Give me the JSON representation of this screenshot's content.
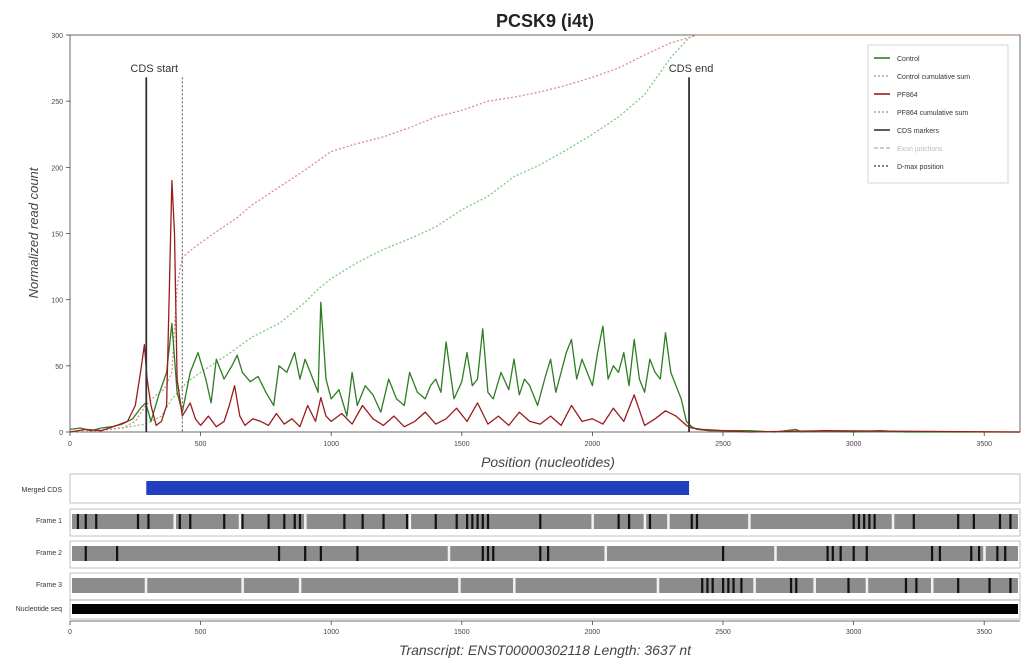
{
  "chart_data": {
    "type": "line",
    "title": "PCSK9 (i4t)",
    "xlabel": "Position (nucleotides)",
    "ylabel": "Normalized read count",
    "xlim": [
      0,
      3637
    ],
    "ylim": [
      0,
      300
    ],
    "x_ticks": [
      0,
      500,
      1000,
      1500,
      2000,
      2500,
      3000,
      3500
    ],
    "y_ticks": [
      0,
      50,
      100,
      150,
      200,
      250,
      300
    ],
    "grid": false,
    "legend_position": "top-right",
    "colors": {
      "control": "#2e7d22",
      "pf864": "#9b1c1c",
      "control_cum": "#7fc97f",
      "pf864_cum": "#e08a8a",
      "cds_markers": "#333333",
      "exon_junctions": "#bbbbbb",
      "dmax": "#555555",
      "merged_cds": "#1f3fbf",
      "frame_bg": "#8c8c8c",
      "stop": "#111111",
      "start": "#f2f2f2"
    },
    "legend": [
      {
        "label": "Control",
        "style": "solid",
        "color": "#2e7d22"
      },
      {
        "label": "Control cumulative sum",
        "style": "dotted",
        "color": "#7fc97f"
      },
      {
        "label": "PF864",
        "style": "solid",
        "color": "#9b1c1c"
      },
      {
        "label": "PF864 cumulative sum",
        "style": "dotted",
        "color": "#e08a8a"
      },
      {
        "label": "CDS markers",
        "style": "solid",
        "color": "#333333"
      },
      {
        "label": "Exon junctions",
        "style": "dashed",
        "color": "#bbbbbb"
      },
      {
        "label": "D-max position",
        "style": "dotted",
        "color": "#555555"
      }
    ],
    "annotations": {
      "cds_start_label": "CDS start",
      "cds_end_label": "CDS end",
      "cds_start": 292,
      "cds_end": 2370,
      "dmax_position": 430
    },
    "series": [
      {
        "name": "Control",
        "x": [
          0,
          40,
          80,
          120,
          160,
          200,
          240,
          270,
          290,
          310,
          340,
          370,
          390,
          410,
          430,
          460,
          490,
          520,
          540,
          560,
          590,
          620,
          640,
          660,
          690,
          720,
          750,
          780,
          800,
          830,
          860,
          880,
          900,
          920,
          950,
          960,
          980,
          1000,
          1030,
          1060,
          1080,
          1100,
          1130,
          1160,
          1190,
          1220,
          1250,
          1280,
          1300,
          1330,
          1360,
          1380,
          1400,
          1420,
          1440,
          1470,
          1500,
          1520,
          1540,
          1560,
          1580,
          1600,
          1620,
          1650,
          1680,
          1700,
          1720,
          1740,
          1760,
          1790,
          1820,
          1840,
          1860,
          1880,
          1900,
          1920,
          1940,
          1960,
          1980,
          2000,
          2020,
          2040,
          2060,
          2080,
          2100,
          2120,
          2140,
          2160,
          2180,
          2200,
          2220,
          2240,
          2260,
          2280,
          2300,
          2320,
          2340,
          2360,
          2380,
          2400,
          2450,
          2500,
          2600,
          2700,
          2780,
          2800,
          2900,
          3000,
          3100,
          3200,
          3300,
          3400,
          3500,
          3637
        ],
        "y": [
          2,
          3,
          1,
          3,
          4,
          6,
          10,
          18,
          22,
          8,
          28,
          45,
          82,
          30,
          15,
          45,
          60,
          40,
          22,
          55,
          40,
          50,
          58,
          45,
          38,
          42,
          30,
          20,
          50,
          45,
          60,
          40,
          55,
          45,
          30,
          98,
          40,
          25,
          32,
          12,
          45,
          20,
          35,
          28,
          15,
          40,
          25,
          20,
          45,
          30,
          25,
          35,
          40,
          30,
          68,
          25,
          38,
          60,
          35,
          40,
          78,
          30,
          25,
          45,
          32,
          55,
          28,
          40,
          35,
          20,
          42,
          55,
          30,
          45,
          60,
          70,
          40,
          55,
          45,
          35,
          60,
          80,
          40,
          50,
          45,
          60,
          35,
          70,
          40,
          30,
          55,
          45,
          40,
          75,
          45,
          35,
          25,
          8,
          4,
          2,
          1,
          1,
          1,
          0,
          2,
          0,
          1,
          0,
          1,
          0,
          0,
          0,
          0,
          0
        ]
      },
      {
        "name": "PF864",
        "x": [
          0,
          60,
          120,
          180,
          220,
          250,
          270,
          285,
          295,
          310,
          330,
          350,
          370,
          390,
          400,
          410,
          430,
          460,
          480,
          500,
          530,
          560,
          590,
          610,
          630,
          650,
          670,
          700,
          730,
          760,
          790,
          820,
          850,
          880,
          910,
          940,
          960,
          980,
          1000,
          1040,
          1080,
          1120,
          1160,
          1200,
          1240,
          1280,
          1320,
          1360,
          1400,
          1440,
          1480,
          1520,
          1560,
          1600,
          1640,
          1680,
          1720,
          1760,
          1800,
          1840,
          1880,
          1920,
          1960,
          2000,
          2040,
          2080,
          2120,
          2160,
          2200,
          2240,
          2280,
          2320,
          2360,
          2380,
          2420,
          2500,
          2600,
          2900,
          3637
        ],
        "y": [
          0,
          2,
          1,
          5,
          8,
          20,
          45,
          66,
          40,
          20,
          5,
          8,
          20,
          190,
          150,
          40,
          12,
          22,
          10,
          5,
          12,
          4,
          8,
          20,
          35,
          12,
          5,
          10,
          8,
          5,
          14,
          6,
          10,
          4,
          20,
          8,
          26,
          12,
          8,
          14,
          6,
          20,
          10,
          5,
          12,
          4,
          8,
          15,
          6,
          10,
          18,
          8,
          22,
          6,
          12,
          5,
          15,
          8,
          6,
          12,
          5,
          20,
          8,
          10,
          6,
          18,
          8,
          28,
          5,
          10,
          16,
          12,
          5,
          3,
          2,
          1,
          0,
          1,
          0
        ]
      },
      {
        "name": "Control cumulative sum",
        "x": [
          0,
          100,
          200,
          290,
          350,
          390,
          450,
          500,
          600,
          700,
          800,
          900,
          950,
          1000,
          1100,
          1200,
          1300,
          1400,
          1500,
          1600,
          1700,
          1800,
          1900,
          2000,
          2100,
          2200,
          2300,
          2370,
          2400,
          2500,
          2600,
          2700,
          3000,
          3637
        ],
        "y": [
          0,
          1,
          3,
          6,
          12,
          25,
          38,
          45,
          58,
          72,
          82,
          98,
          108,
          116,
          128,
          138,
          146,
          155,
          168,
          178,
          193,
          202,
          213,
          225,
          238,
          255,
          283,
          298,
          300,
          300,
          300,
          300,
          300,
          300
        ]
      },
      {
        "name": "PF864 cumulative sum",
        "x": [
          0,
          100,
          200,
          250,
          290,
          330,
          360,
          390,
          410,
          430,
          480,
          550,
          640,
          700,
          800,
          900,
          1000,
          1100,
          1200,
          1300,
          1400,
          1500,
          1600,
          1700,
          1800,
          1900,
          2000,
          2100,
          2200,
          2300,
          2370,
          2400,
          2500,
          2600,
          2700,
          3000,
          3637
        ],
        "y": [
          0,
          1,
          3,
          8,
          20,
          28,
          32,
          45,
          110,
          132,
          140,
          150,
          162,
          172,
          185,
          198,
          212,
          218,
          223,
          230,
          238,
          243,
          250,
          253,
          257,
          262,
          268,
          275,
          285,
          294,
          298,
          300,
          300,
          300,
          300,
          300,
          300
        ]
      }
    ],
    "lower_tracks": {
      "merged_cds_label": "Merged CDS",
      "frame_labels": [
        "Frame 1",
        "Frame 2",
        "Frame 3"
      ],
      "nucleotide_label": "Nucleotide seq",
      "frame1_stops": [
        30,
        60,
        100,
        260,
        300,
        420,
        460,
        590,
        660,
        760,
        820,
        860,
        880,
        1050,
        1120,
        1200,
        1290,
        1400,
        1480,
        1520,
        1540,
        1560,
        1580,
        1600,
        1800,
        2100,
        2140,
        2220,
        2380,
        2400,
        3000,
        3020,
        3040,
        3060,
        3080,
        3230,
        3400,
        3460,
        3560,
        3600
      ],
      "frame1_starts": [
        400,
        650,
        900,
        1300,
        2000,
        2200,
        2290,
        2600,
        3150
      ],
      "frame2_stops": [
        60,
        180,
        800,
        900,
        960,
        1100,
        1580,
        1600,
        1620,
        1800,
        1830,
        2500,
        2900,
        2920,
        2950,
        3000,
        3050,
        3300,
        3330,
        3450,
        3480,
        3550,
        3580
      ],
      "frame2_starts": [
        1450,
        2050,
        2700,
        3500
      ],
      "frame3_stops": [
        2420,
        2440,
        2460,
        2500,
        2520,
        2540,
        2570,
        2760,
        2780,
        2980,
        3200,
        3240,
        3400,
        3520,
        3600
      ],
      "frame3_starts": [
        290,
        660,
        880,
        1490,
        1700,
        2250,
        2620,
        2850,
        3050,
        3300
      ]
    },
    "footer": "Transcript: ENST00000302118   Length: 3637 nt"
  }
}
